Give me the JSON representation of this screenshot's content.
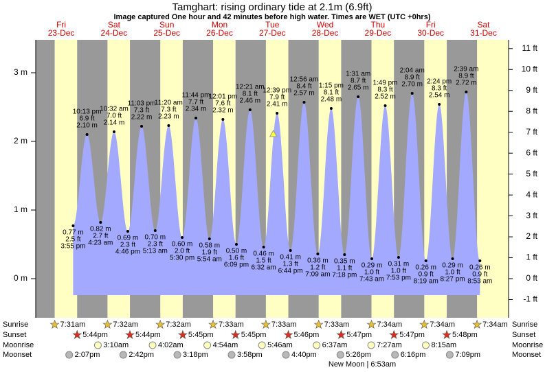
{
  "chart_data": {
    "type": "tide",
    "title": "Tamghart: rising  ordinary tide at 2.1m (6.9ft)",
    "subtitle": "Image captured One hour and 42 minutes before high water. Times are WET (UTC +0hrs)",
    "ylim": [
      -0.57,
      3.48
    ],
    "yticks": [
      {
        "value": 0,
        "label": "0 m"
      },
      {
        "value": 1,
        "label": "1 m"
      },
      {
        "value": 2,
        "label": "2 m"
      },
      {
        "value": 3,
        "label": "3 m"
      }
    ],
    "y2lim": [
      -1.87,
      11.42
    ],
    "y2ticks": [
      {
        "value": -1,
        "label": "-1 ft"
      },
      {
        "value": 0,
        "label": "0 ft"
      },
      {
        "value": 1,
        "label": "1 ft"
      },
      {
        "value": 2,
        "label": "2 ft"
      },
      {
        "value": 3,
        "label": "3 ft"
      },
      {
        "value": 4,
        "label": "4 ft"
      },
      {
        "value": 5,
        "label": "5 ft"
      },
      {
        "value": 6,
        "label": "6 ft"
      },
      {
        "value": 7,
        "label": "7 ft"
      },
      {
        "value": 8,
        "label": "8 ft"
      },
      {
        "value": 9,
        "label": "9 ft"
      },
      {
        "value": 10,
        "label": "10 ft"
      },
      {
        "value": 11,
        "label": "11 ft"
      }
    ],
    "row_labels": {
      "sunrise": "Sunrise",
      "sunset": "Sunset",
      "moonrise": "Moonrise",
      "moonset": "Moonset"
    },
    "moon_phase": "New Moon | 6:53am",
    "days": [
      {
        "weekday": "Fri",
        "date": "23-Dec",
        "sunrise": "7:31am",
        "sunset": "5:44pm",
        "moonset": "2:07pm",
        "tides": [
          {
            "time": "3:55 pm",
            "ft": 2.5,
            "m": 0.77
          },
          {
            "time": "10:13 pm",
            "ft": 6.9,
            "m": 2.1
          }
        ]
      },
      {
        "weekday": "Sat",
        "date": "24-Dec",
        "sunrise": "7:32am",
        "sunset": "5:44pm",
        "moonrise": "3:10am",
        "moonset": "2:42pm",
        "tides": [
          {
            "time": "4:23 am",
            "ft": 2.7,
            "m": 0.82
          },
          {
            "time": "10:32 am",
            "ft": 7.0,
            "m": 2.14
          },
          {
            "time": "4:46 pm",
            "ft": 2.3,
            "m": 0.69
          },
          {
            "time": "11:03 pm",
            "ft": 7.3,
            "m": 2.22
          }
        ]
      },
      {
        "weekday": "Sun",
        "date": "25-Dec",
        "sunrise": "7:32am",
        "sunset": "5:45pm",
        "moonrise": "4:02am",
        "moonset": "3:18pm",
        "tides": [
          {
            "time": "5:13 am",
            "ft": 2.3,
            "m": 0.7
          },
          {
            "time": "11:20 am",
            "ft": 7.3,
            "m": 2.23
          },
          {
            "time": "5:30 pm",
            "ft": 2.0,
            "m": 0.6
          },
          {
            "time": "11:44 pm",
            "ft": 7.7,
            "m": 2.34
          }
        ]
      },
      {
        "weekday": "Mon",
        "date": "26-Dec",
        "sunrise": "7:33am",
        "sunset": "5:45pm",
        "moonrise": "4:54am",
        "moonset": "3:58pm",
        "tides": [
          {
            "time": "5:54 am",
            "ft": 1.9,
            "m": 0.58
          },
          {
            "time": "12:01 pm",
            "ft": 7.6,
            "m": 2.32
          },
          {
            "time": "6:09 pm",
            "ft": 1.6,
            "m": 0.5
          }
        ]
      },
      {
        "weekday": "Tue",
        "date": "27-Dec",
        "sunrise": "7:33am",
        "sunset": "5:46pm",
        "moonrise": "5:46am",
        "moonset": "4:40pm",
        "now": {
          "time": "10:57 am",
          "m": 2.1
        },
        "tides": [
          {
            "time": "12:21 am",
            "ft": 8.1,
            "m": 2.46
          },
          {
            "time": "6:32 am",
            "ft": 1.5,
            "m": 0.46
          },
          {
            "time": "12:39 pm",
            "ft": 7.9,
            "m": 2.41
          },
          {
            "time": "6:44 pm",
            "ft": 1.3,
            "m": 0.41
          }
        ]
      },
      {
        "weekday": "Wed",
        "date": "28-Dec",
        "sunrise": "7:33am",
        "sunset": "5:47pm",
        "moonrise": "6:37am",
        "moonset": "5:26pm",
        "tides": [
          {
            "time": "12:56 am",
            "ft": 8.4,
            "m": 2.57
          },
          {
            "time": "7:09 am",
            "ft": 1.2,
            "m": 0.36
          },
          {
            "time": "1:15 pm",
            "ft": 8.1,
            "m": 2.48
          },
          {
            "time": "7:18 pm",
            "ft": 1.1,
            "m": 0.35
          }
        ]
      },
      {
        "weekday": "Thu",
        "date": "29-Dec",
        "sunrise": "7:34am",
        "sunset": "5:47pm",
        "moonrise": "7:27am",
        "moonset": "6:16pm",
        "tides": [
          {
            "time": "1:31 am",
            "ft": 8.7,
            "m": 2.65
          },
          {
            "time": "7:43 am",
            "ft": 1.0,
            "m": 0.29
          },
          {
            "time": "1:49 pm",
            "ft": 8.3,
            "m": 2.52
          },
          {
            "time": "7:53 pm",
            "ft": 1.0,
            "m": 0.31
          }
        ]
      },
      {
        "weekday": "Fri",
        "date": "30-Dec",
        "sunrise": "7:34am",
        "sunset": "5:48pm",
        "moonrise": "8:15am",
        "moonset": "7:09pm",
        "tides": [
          {
            "time": "2:04 am",
            "ft": 8.9,
            "m": 2.7
          },
          {
            "time": "8:19 am",
            "ft": 0.9,
            "m": 0.26
          },
          {
            "time": "2:24 pm",
            "ft": 8.3,
            "m": 2.54
          },
          {
            "time": "8:27 pm",
            "ft": 1.0,
            "m": 0.29
          }
        ]
      },
      {
        "weekday": "Sat",
        "date": "31-Dec",
        "sunrise": "7:34am",
        "tides": [
          {
            "time": "2:39 am",
            "ft": 8.9,
            "m": 2.72
          },
          {
            "time": "8:53 am",
            "ft": 0.9,
            "m": 0.26
          }
        ]
      }
    ]
  }
}
